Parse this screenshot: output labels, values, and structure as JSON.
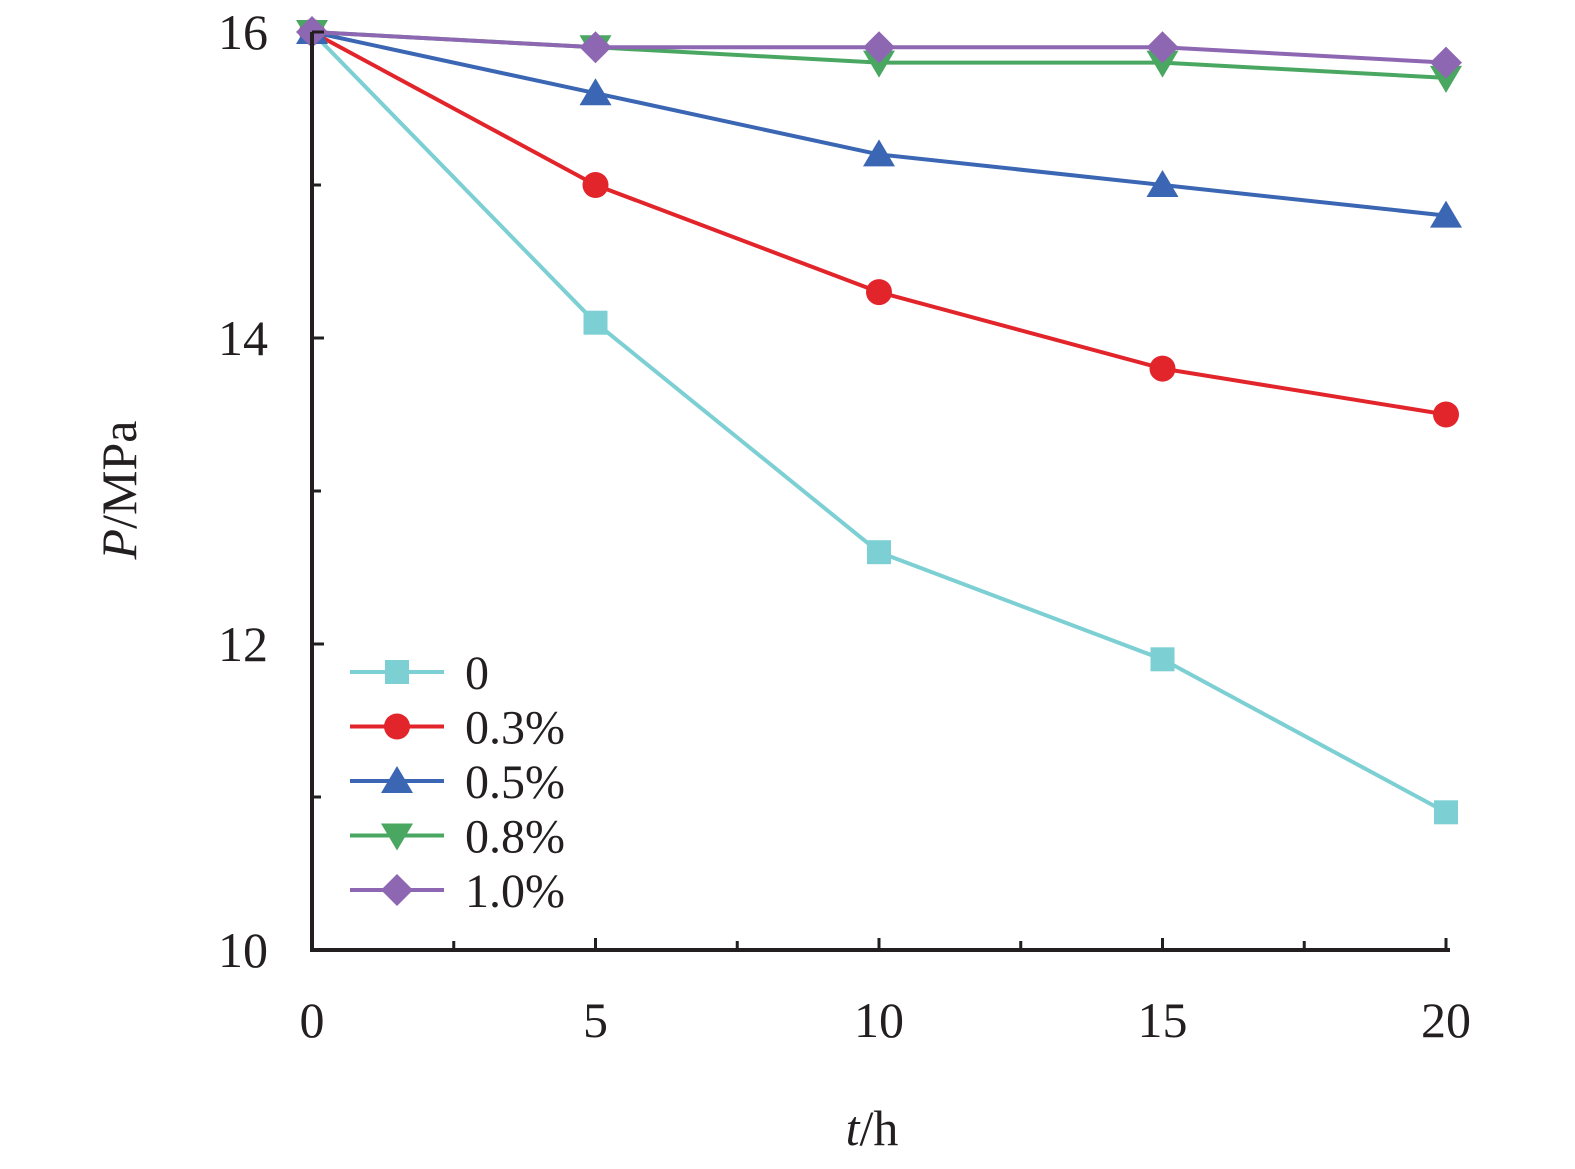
{
  "chart_data": {
    "type": "line",
    "xlabel": {
      "italic": "t",
      "rest": "/h"
    },
    "ylabel": {
      "italic": "P",
      "rest": "/MPa"
    },
    "xlim": [
      0,
      20
    ],
    "ylim": [
      10,
      16
    ],
    "x_ticks": [
      0,
      5,
      10,
      15,
      20
    ],
    "x_minor_ticks": [
      2.5,
      7.5,
      12.5,
      17.5
    ],
    "y_ticks": [
      10,
      12,
      14,
      16
    ],
    "y_minor_ticks": [
      11,
      13,
      15
    ],
    "x_tick_labels": [
      "0",
      "5",
      "10",
      "15",
      "20"
    ],
    "y_tick_labels": [
      "10",
      "12",
      "14",
      "16"
    ],
    "grid": false,
    "legend_position": "bottom-left",
    "x": [
      0,
      5,
      10,
      15,
      20
    ],
    "series": [
      {
        "name": "0",
        "values": [
          16.0,
          14.1,
          12.6,
          11.9,
          10.9
        ],
        "color": "#7ccfd3",
        "marker": "square"
      },
      {
        "name": "0.3%",
        "values": [
          16.0,
          15.0,
          14.3,
          13.8,
          13.5
        ],
        "color": "#e2242b",
        "marker": "circle"
      },
      {
        "name": "0.5%",
        "values": [
          16.0,
          15.6,
          15.2,
          15.0,
          14.8
        ],
        "color": "#3b66b3",
        "marker": "triangle-up"
      },
      {
        "name": "0.8%",
        "values": [
          16.0,
          15.9,
          15.8,
          15.8,
          15.7
        ],
        "color": "#4aa761",
        "marker": "triangle-down"
      },
      {
        "name": "1.0%",
        "values": [
          16.0,
          15.9,
          15.9,
          15.9,
          15.8
        ],
        "color": "#8e67b3",
        "marker": "diamond"
      }
    ]
  }
}
